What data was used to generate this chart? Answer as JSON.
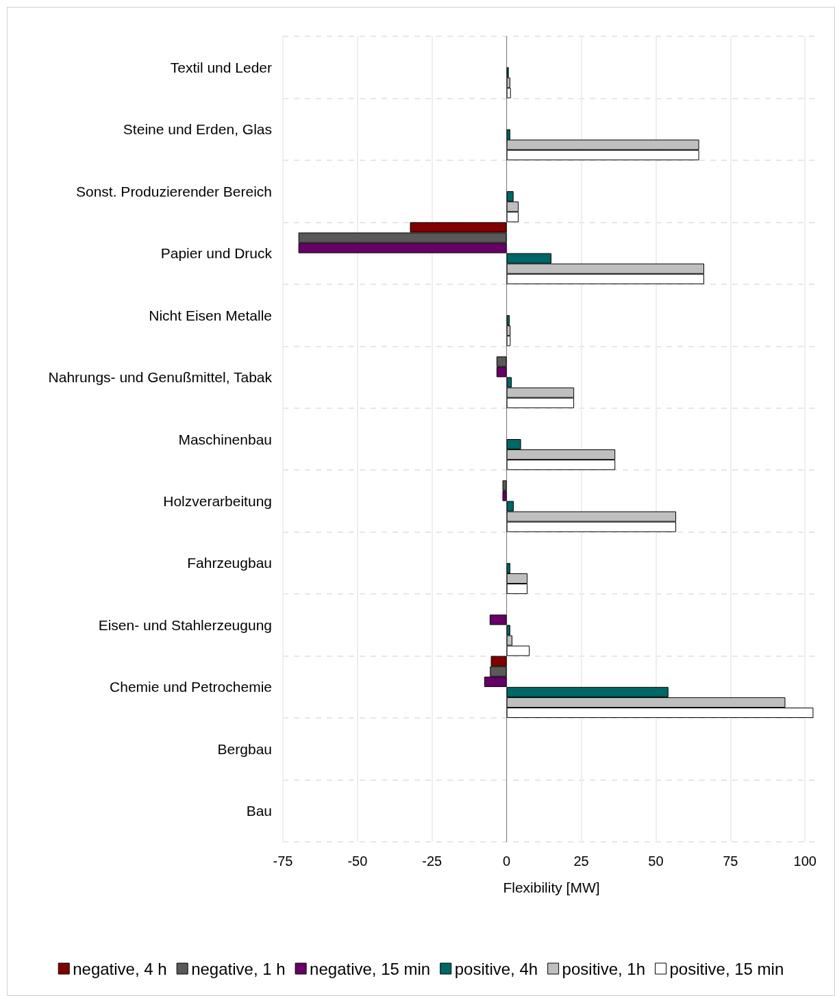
{
  "chart_data": {
    "type": "bar",
    "orientation": "horizontal",
    "xlabel": "Flexibility [MW]",
    "categories": [
      "Textil und Leder",
      "Steine und Erden, Glas",
      "Sonst. Produzierender Bereich",
      "Papier und Druck",
      "Nicht Eisen Metalle",
      "Nahrungs- und Genußmittel, Tabak",
      "Maschinenbau",
      "Holzverarbeitung",
      "Fahrzeugbau",
      "Eisen- und Stahlerzeugung",
      "Chemie und Petrochemie",
      "Bergbau",
      "Bau"
    ],
    "series": [
      {
        "name": "negative, 4 h",
        "color": "#800000",
        "values": [
          null,
          null,
          null,
          -32.4,
          null,
          null,
          null,
          null,
          null,
          null,
          -5.3,
          null,
          null
        ]
      },
      {
        "name": "negative, 1 h",
        "color": "#595959",
        "values": [
          null,
          null,
          null,
          -69.8,
          null,
          -3.4,
          null,
          -1.4,
          null,
          null,
          -5.6,
          null,
          null
        ]
      },
      {
        "name": "negative, 15 min",
        "color": "#660066",
        "values": [
          null,
          null,
          null,
          -69.8,
          null,
          -3.4,
          null,
          -1.4,
          null,
          -5.7,
          -7.5,
          null,
          null
        ]
      },
      {
        "name": "positive, 4h",
        "color": "#006666",
        "values": [
          0.7,
          1.2,
          2.3,
          15.0,
          1.0,
          1.7,
          4.8,
          2.4,
          1.2,
          1.2,
          54.2,
          null,
          null
        ]
      },
      {
        "name": "positive, 1h",
        "color": "#bfbfbf",
        "values": [
          1.2,
          64.5,
          4.0,
          66.2,
          1.3,
          22.6,
          36.4,
          56.8,
          7.0,
          1.9,
          93.4,
          null,
          null
        ]
      },
      {
        "name": "positive, 15 min",
        "color": "#ffffff",
        "values": [
          1.4,
          64.5,
          4.0,
          66.2,
          1.3,
          22.6,
          36.4,
          56.8,
          7.0,
          7.7,
          102.8,
          null,
          null
        ]
      }
    ],
    "xlim": [
      -75,
      105
    ],
    "xticks": [
      -75,
      -50,
      -25,
      0,
      25,
      50,
      75,
      100
    ],
    "grid": true,
    "legend": "bottom"
  }
}
